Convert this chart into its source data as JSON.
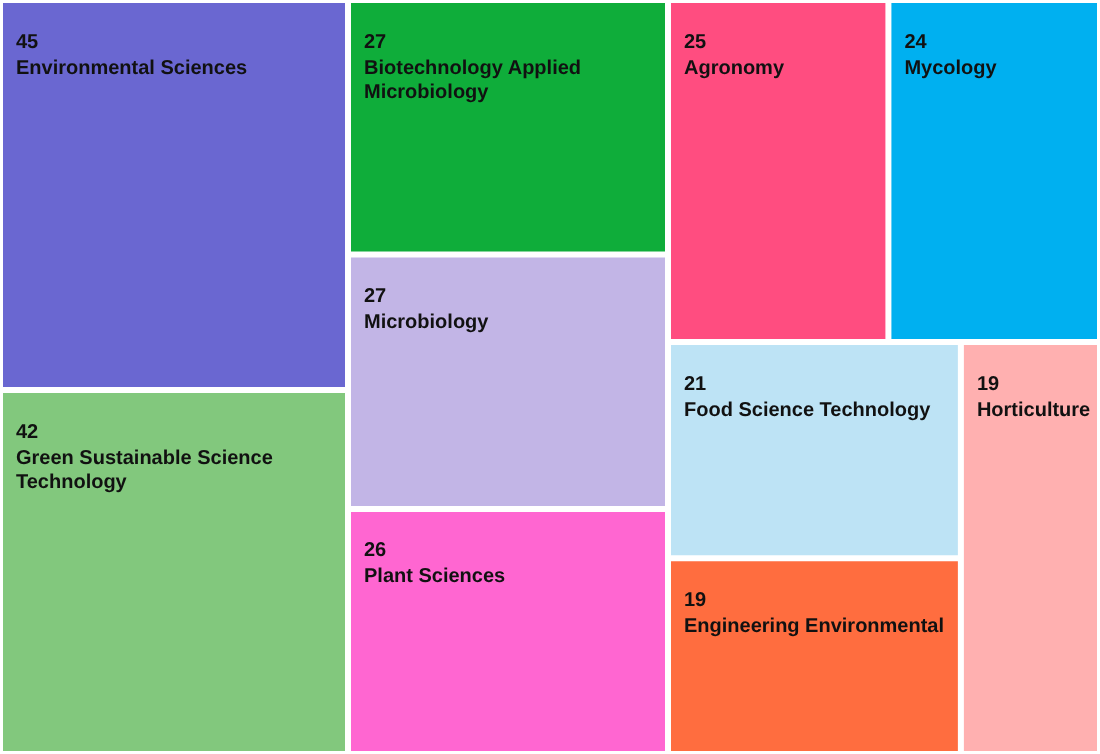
{
  "chart_data": {
    "type": "other",
    "categories": [
      "Environmental Sciences",
      "Green Sustainable Science Technology",
      "Biotechnology Applied Microbiology",
      "Microbiology",
      "Plant Sciences",
      "Agronomy",
      "Mycology",
      "Food Science Technology",
      "Engineering Environmental",
      "Horticulture"
    ],
    "values": [
      45,
      42,
      27,
      27,
      26,
      25,
      24,
      21,
      19,
      19
    ],
    "colors": [
      "#6a67d1",
      "#82c87d",
      "#0fad3a",
      "#c2b5e6",
      "#ff66d1",
      "#ff4d80",
      "#00b0f0",
      "#bde3f5",
      "#ff6d3f",
      "#ffb0b0"
    ],
    "data_labels": true
  }
}
